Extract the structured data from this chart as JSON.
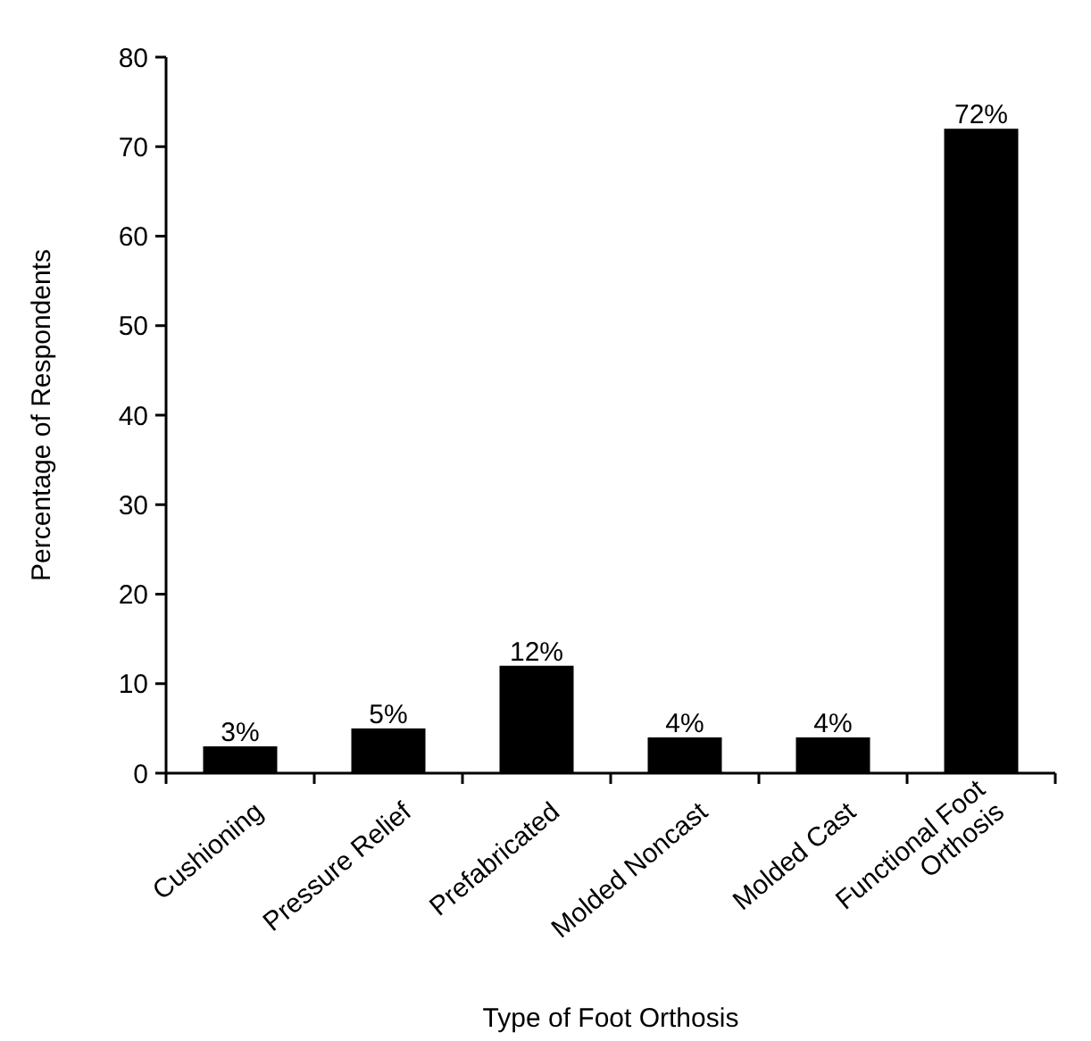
{
  "chart_data": {
    "type": "bar",
    "xlabel": "Type of Foot Orthosis",
    "ylabel": "Percentage of Respondents",
    "categories": [
      "Cushioning",
      "Pressure Relief",
      "Prefabricated",
      "Molded Noncast",
      "Molded Cast",
      "Functional Foot Orthosis"
    ],
    "values": [
      3,
      5,
      12,
      4,
      4,
      72
    ],
    "value_labels": [
      "3%",
      "5%",
      "12%",
      "4%",
      "4%",
      "72%"
    ],
    "color": "#000000",
    "ylim": [
      0,
      80
    ],
    "yticks": [
      0,
      10,
      20,
      30,
      40,
      50,
      60,
      70,
      80
    ],
    "grid": false
  }
}
